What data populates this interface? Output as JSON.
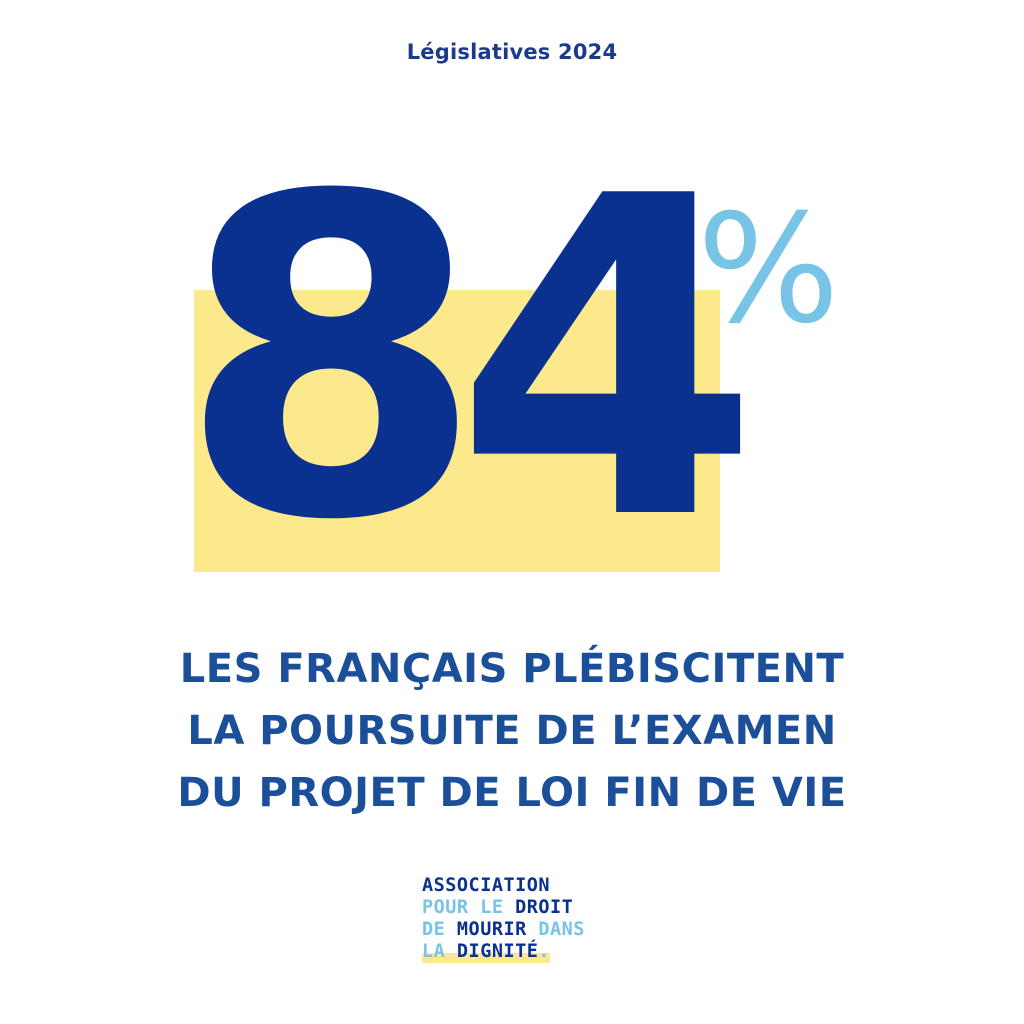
{
  "header": {
    "kicker": "Législatives 2024"
  },
  "stat": {
    "value": "84",
    "unit": "%"
  },
  "headline": {
    "lines": [
      "LES FRANÇAIS PLÉBISCITENT",
      "LA POURSUITE DE L’EXAMEN",
      "DU PROJET DE LOI FIN DE VIE"
    ]
  },
  "logo": {
    "line1": "ASSOCIATION",
    "line2_light": "POUR LE ",
    "line2_dark": "DROIT",
    "line3_light_a": "DE ",
    "line3_dark": "MOURIR ",
    "line3_light_b": "DANS",
    "line4_light": "LA ",
    "line4_dark": "DIGNITÉ",
    "line4_dot": "."
  },
  "colors": {
    "navy": "#0b3190",
    "headline_blue": "#1b4f9a",
    "sky_blue": "#78c4e6",
    "highlight_yellow": "#fbe98c"
  }
}
